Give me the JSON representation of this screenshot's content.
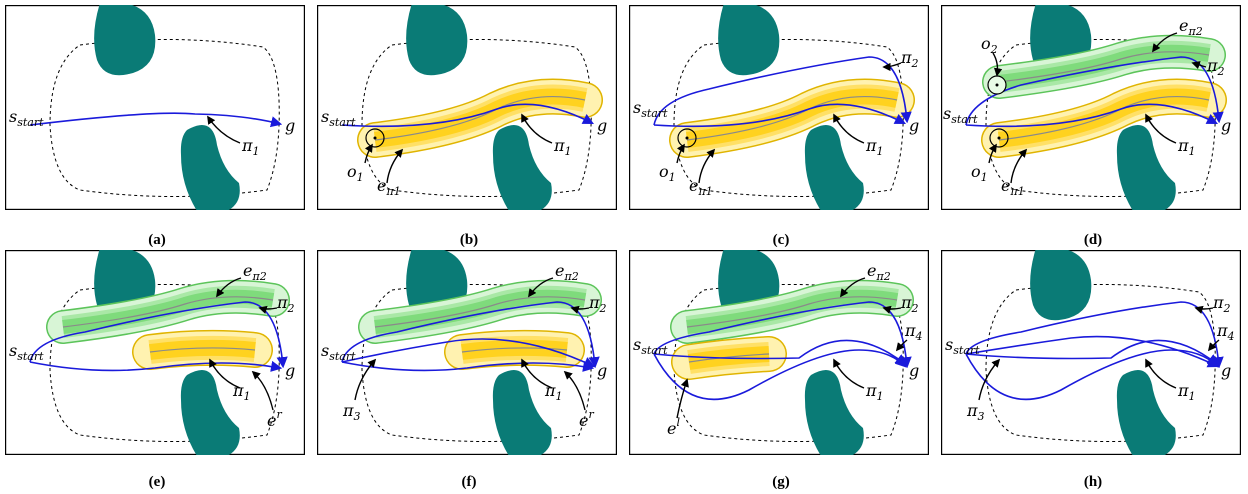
{
  "labels": {
    "start": "s",
    "start_sub": "start",
    "goal": "g",
    "pi": "π",
    "e": "e",
    "o": "o",
    "one": "1",
    "two": "2",
    "three": "3",
    "four": "4",
    "er_sup": "r",
    "el_sup": "l"
  },
  "subfigure_labels": [
    "(a)",
    "(b)",
    "(c)",
    "(d)",
    "(e)",
    "(f)",
    "(g)",
    "(h)"
  ],
  "colors": {
    "obstacle": "#0a7b76",
    "path": "#1a1adb",
    "yellow_outer": "#fff2b0",
    "yellow_mid": "#ffe066",
    "yellow_inner": "#ffd21f",
    "yellow_edge": "#e0b400",
    "green_outer": "#d8f5d6",
    "green_mid": "#a9e8a6",
    "green_inner": "#7fdb7c",
    "green_edge": "#5cc45a"
  }
}
